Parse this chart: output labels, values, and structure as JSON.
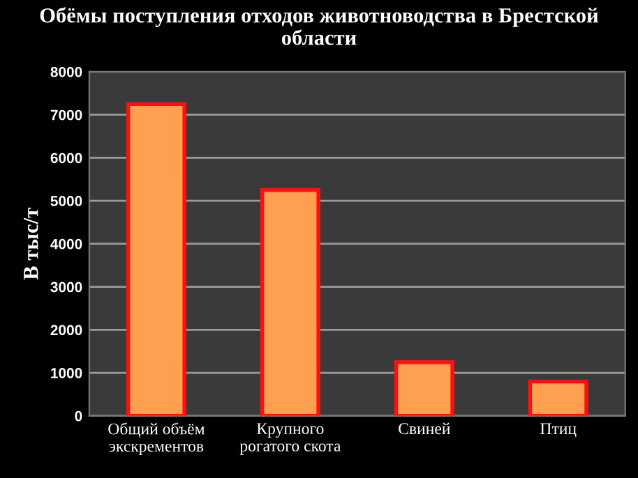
{
  "chart_data": {
    "type": "bar",
    "title": "Обёмы поступления отходов животноводства в Брестской области",
    "ylabel": "В тыс/т",
    "categories": [
      "Общий объём\nэкскрементов",
      "Крупного\nрогатого скота",
      "Свиней",
      "Птиц"
    ],
    "values": [
      7250,
      5250,
      1250,
      800
    ],
    "color": "#ffa050",
    "ylim": [
      0,
      8000
    ],
    "yticks": [
      0,
      1000,
      2000,
      3000,
      4000,
      5000,
      6000,
      7000,
      8000
    ],
    "grid": "y"
  }
}
